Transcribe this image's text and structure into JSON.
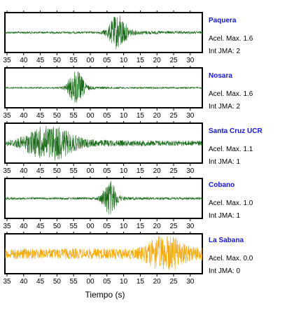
{
  "chart_data": {
    "type": "line",
    "x_axis_label": "Tiempo (s)",
    "tick_labels": [
      "35",
      "40",
      "45",
      "50",
      "55",
      "00",
      "05",
      "10",
      "15",
      "20",
      "25",
      "30"
    ],
    "grid": false,
    "panels": [
      {
        "name": "Paquera",
        "accel_text": "Acel. Max. 1.6",
        "jma_text": "Int JMA: 2",
        "color": "#1a6b1a",
        "noise": 0.06,
        "burst_center": 0.57,
        "burst_width": 0.045,
        "burst_amp": 0.95,
        "tail": 0.25
      },
      {
        "name": "Nosara",
        "accel_text": "Acel. Max. 1.6",
        "jma_text": "Int JMA: 2",
        "color": "#1a6b1a",
        "noise": 0.04,
        "burst_center": 0.36,
        "burst_width": 0.04,
        "burst_amp": 0.95,
        "tail": 0.15
      },
      {
        "name": "Santa Cruz UCR",
        "accel_text": "Acel. Max. 1.1",
        "jma_text": "Int JMA: 1",
        "color": "#1a6b1a",
        "noise": 0.12,
        "burst_center": 0.22,
        "burst_width": 0.12,
        "burst_amp": 0.9,
        "tail": 0.3
      },
      {
        "name": "Cobano",
        "accel_text": "Acel. Max. 1.0",
        "jma_text": "Int JMA: 1",
        "color": "#1a6b1a",
        "noise": 0.06,
        "burst_center": 0.53,
        "burst_width": 0.035,
        "burst_amp": 0.95,
        "tail": 0.15
      },
      {
        "name": "La Sabana",
        "accel_text": "Acel. Max. 0.0",
        "jma_text": "Int JMA: 0",
        "color": "#f5a800",
        "noise": 0.3,
        "burst_center": 0.81,
        "burst_width": 0.08,
        "burst_amp": 0.95,
        "tail": 0.35
      }
    ]
  }
}
